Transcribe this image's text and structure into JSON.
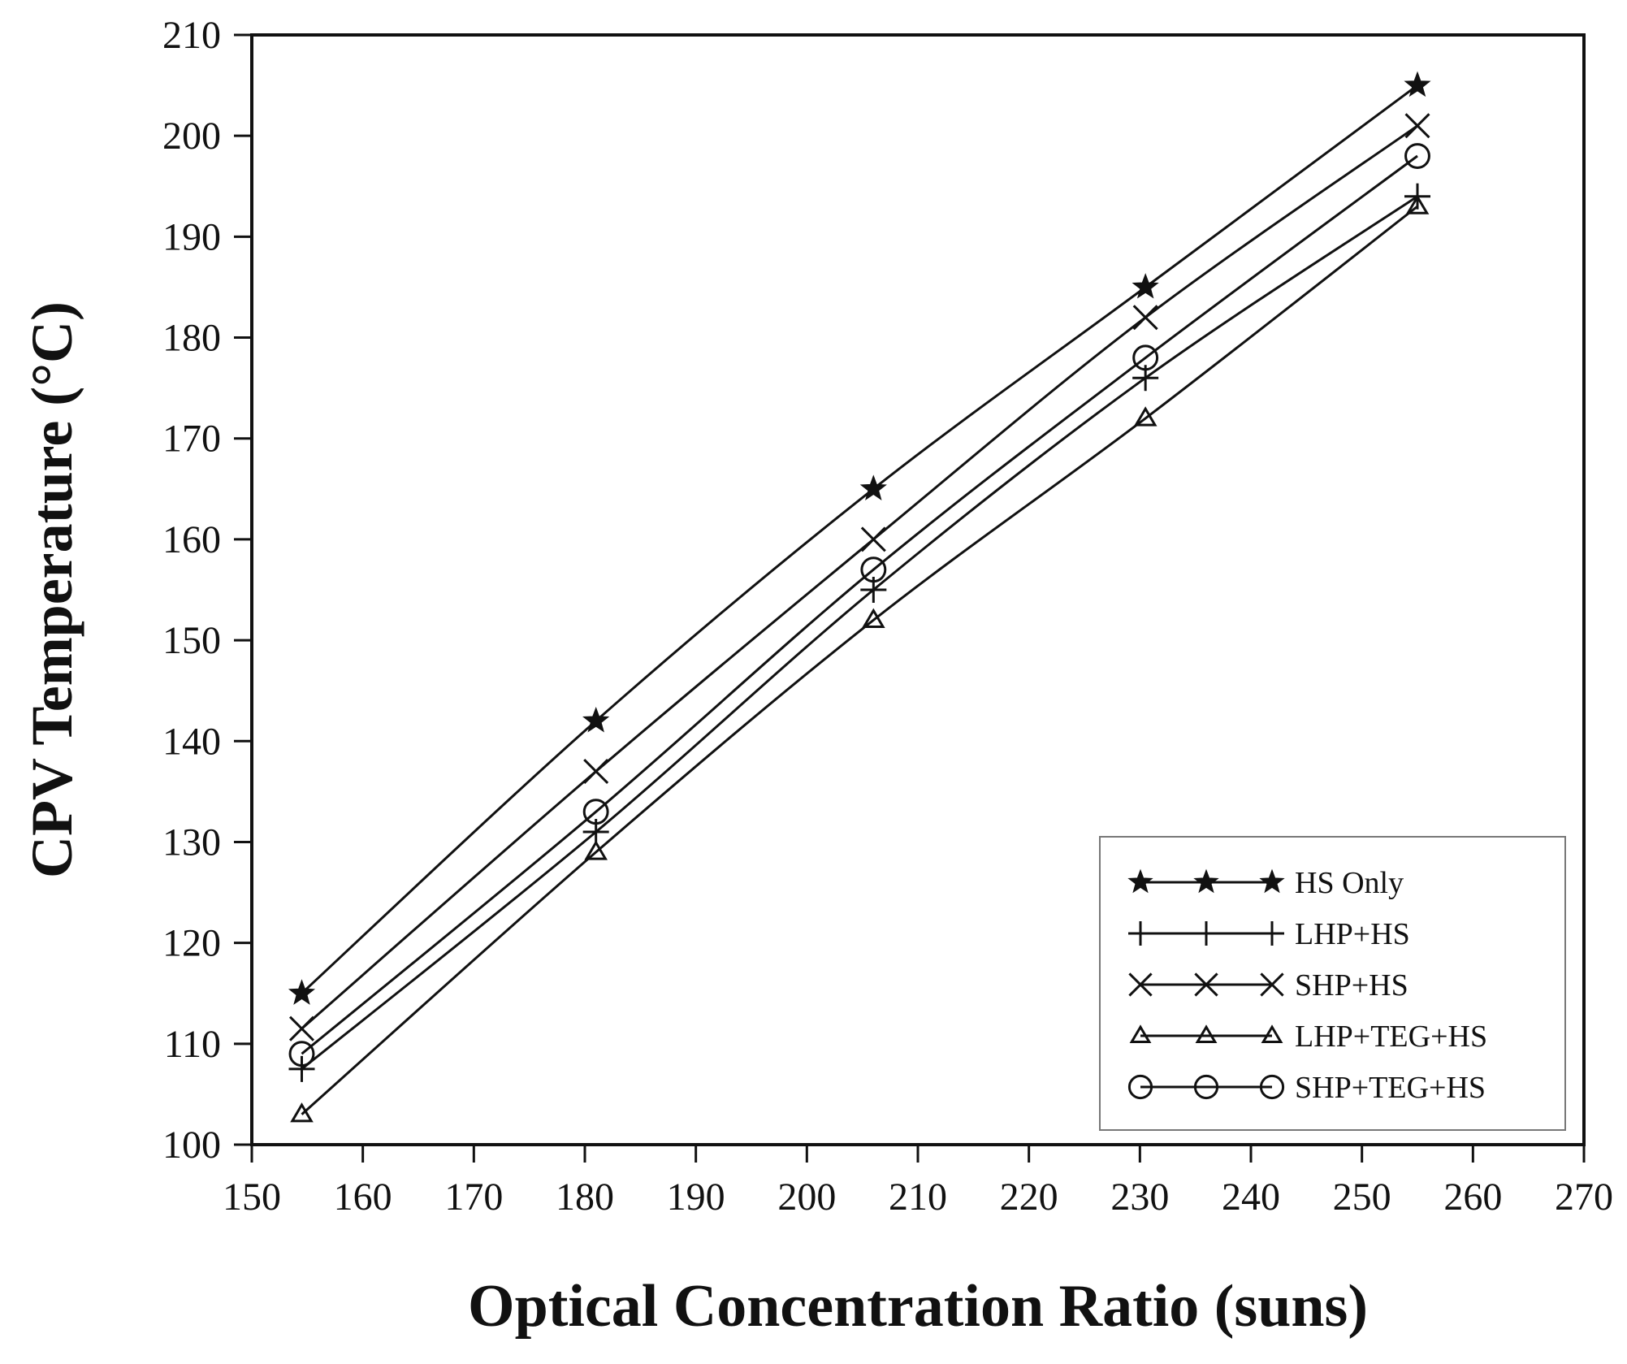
{
  "chart_data": {
    "type": "line",
    "title": "",
    "xlabel": "Optical Concentration Ratio (suns)",
    "ylabel": "CPV Temperature (°C)",
    "xlim": [
      150,
      270
    ],
    "ylim": [
      100,
      210
    ],
    "xticks": [
      150,
      160,
      170,
      180,
      190,
      200,
      210,
      220,
      230,
      240,
      250,
      260,
      270
    ],
    "yticks": [
      100,
      110,
      120,
      130,
      140,
      150,
      160,
      170,
      180,
      190,
      200,
      210
    ],
    "grid": false,
    "legend_position": "bottom-right",
    "x": [
      154.5,
      181,
      206,
      230.5,
      255
    ],
    "series": [
      {
        "name": "HS Only",
        "marker": "star",
        "values": [
          115,
          142,
          165,
          185,
          205
        ]
      },
      {
        "name": "LHP+HS",
        "marker": "plus",
        "values": [
          107.5,
          131,
          155,
          176,
          194
        ]
      },
      {
        "name": "SHP+HS",
        "marker": "cross",
        "values": [
          111.5,
          137,
          160,
          182,
          201
        ]
      },
      {
        "name": "LHP+TEG+HS",
        "marker": "triangle",
        "values": [
          103,
          129,
          152,
          172,
          193
        ]
      },
      {
        "name": "SHP+TEG+HS",
        "marker": "circle",
        "values": [
          109,
          133,
          157,
          178,
          198
        ]
      }
    ]
  }
}
